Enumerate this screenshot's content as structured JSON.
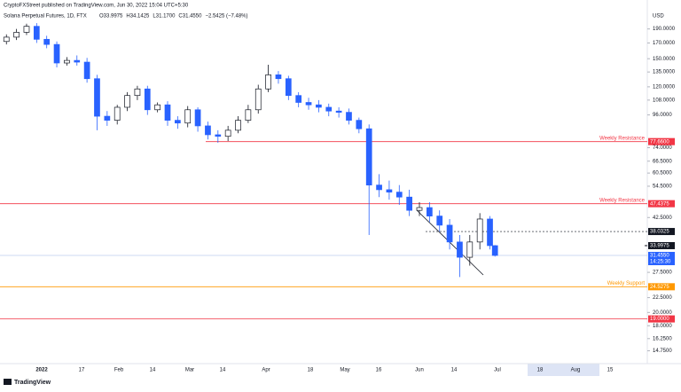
{
  "header": {
    "publisher": "CryptoFXStreet published on TradingView.com, Jun 30, 2022 15:04 UTC+5:30",
    "brand": "TradingView"
  },
  "chart_data": {
    "type": "candlestick",
    "title": "Solana Perpetual Futures, 1D, FTX",
    "stats": [
      "O33.9975",
      "H34.1425",
      "L31.1700",
      "C31.4550",
      "−2.5425 (−7.48%)"
    ],
    "currency": "USD",
    "log_scale": true,
    "ylim": [
      13.8,
      226
    ],
    "yticks": [
      {
        "value": 190,
        "label": "190.0000"
      },
      {
        "value": 170,
        "label": "170.0000"
      },
      {
        "value": 150,
        "label": "150.0000"
      },
      {
        "value": 135,
        "label": "135.0000"
      },
      {
        "value": 120,
        "label": "120.0000"
      },
      {
        "value": 108,
        "label": "108.0000"
      },
      {
        "value": 96,
        "label": "96.0000"
      },
      {
        "value": 74,
        "label": "74.0000"
      },
      {
        "value": 66.5,
        "label": "66.5000"
      },
      {
        "value": 60.5,
        "label": "60.5000"
      },
      {
        "value": 54.5,
        "label": "54.5000"
      },
      {
        "value": 42.5,
        "label": "42.5000"
      },
      {
        "value": 27.5,
        "label": "27.5000"
      },
      {
        "value": 22.5,
        "label": "22.5000"
      },
      {
        "value": 20,
        "label": "20.0000"
      },
      {
        "value": 18,
        "label": "18.0000"
      },
      {
        "value": 16.25,
        "label": "16.2500"
      },
      {
        "value": 14.75,
        "label": "14.7500"
      }
    ],
    "x_labels": [
      "2022",
      "17",
      "Feb",
      "14",
      "Mar",
      "14",
      "Apr",
      "18",
      "May",
      "16",
      "Jun",
      "14",
      "Jul",
      "18",
      "Aug",
      "15"
    ],
    "up_color": "#ffffff",
    "down_color": "#2962ff",
    "open": [
      172,
      178,
      185,
      194,
      175,
      168,
      145,
      148,
      146,
      128,
      95,
      92,
      102,
      112,
      118,
      100,
      104,
      92,
      90,
      100,
      88,
      82,
      81,
      85,
      92,
      100,
      118,
      132,
      128,
      112,
      106,
      104,
      102,
      99,
      98,
      92,
      86,
      55,
      53,
      52,
      50,
      45,
      46,
      43,
      40,
      35,
      31,
      35,
      42,
      33.9975
    ],
    "high": [
      182,
      190,
      198,
      199,
      180,
      172,
      152,
      154,
      151,
      132,
      99,
      104,
      115,
      121,
      121,
      106,
      107,
      95,
      103,
      102,
      91,
      85,
      88,
      95,
      104,
      122,
      143,
      136,
      131,
      115,
      110,
      108,
      105,
      102,
      101,
      94,
      89,
      60,
      57,
      55,
      53,
      48,
      48,
      45,
      42,
      37,
      37,
      44,
      43,
      34.1425
    ],
    "low": [
      168,
      174,
      181,
      170,
      163,
      140,
      142,
      142,
      124,
      85,
      88,
      89,
      99,
      108,
      96,
      98,
      88,
      86,
      87,
      84,
      79,
      77,
      78,
      83,
      90,
      97,
      115,
      123,
      108,
      102,
      100,
      98,
      95,
      94,
      89,
      83,
      37,
      50,
      49,
      47,
      43,
      43,
      41,
      38,
      33,
      26.5,
      29,
      33,
      33,
      31.17
    ],
    "close": [
      178,
      185,
      194,
      175,
      168,
      145,
      148,
      146,
      128,
      95,
      92,
      102,
      112,
      118,
      100,
      104,
      92,
      90,
      100,
      88,
      82,
      81,
      85,
      92,
      100,
      118,
      132,
      128,
      112,
      106,
      104,
      102,
      99,
      98,
      92,
      86,
      55,
      53,
      52,
      50,
      45,
      46,
      43,
      40,
      35,
      31,
      35,
      42,
      34,
      31.455
    ],
    "levels": [
      {
        "name": "Weekly Resistance",
        "value": 77.66,
        "label": "77.6600",
        "color": "#f23645"
      },
      {
        "name": "Weekly Resistance",
        "value": 47.4375,
        "label": "47.4375",
        "color": "#f23645"
      },
      {
        "name": "Weekly Support",
        "value": 24.5275,
        "label": "24.5275",
        "color": "#ff9800"
      },
      {
        "value": 19,
        "label": "19.0000",
        "color": "#f23645"
      }
    ],
    "markers": [
      {
        "value": 38.0325,
        "label": "38.0325",
        "color": "#131722"
      },
      {
        "value": 33.9975,
        "label": "33.9975",
        "color": "#131722"
      },
      {
        "value": 31.455,
        "label": "31.4550",
        "color": "#2962ff",
        "sublabel": "14:25:30"
      }
    ]
  }
}
